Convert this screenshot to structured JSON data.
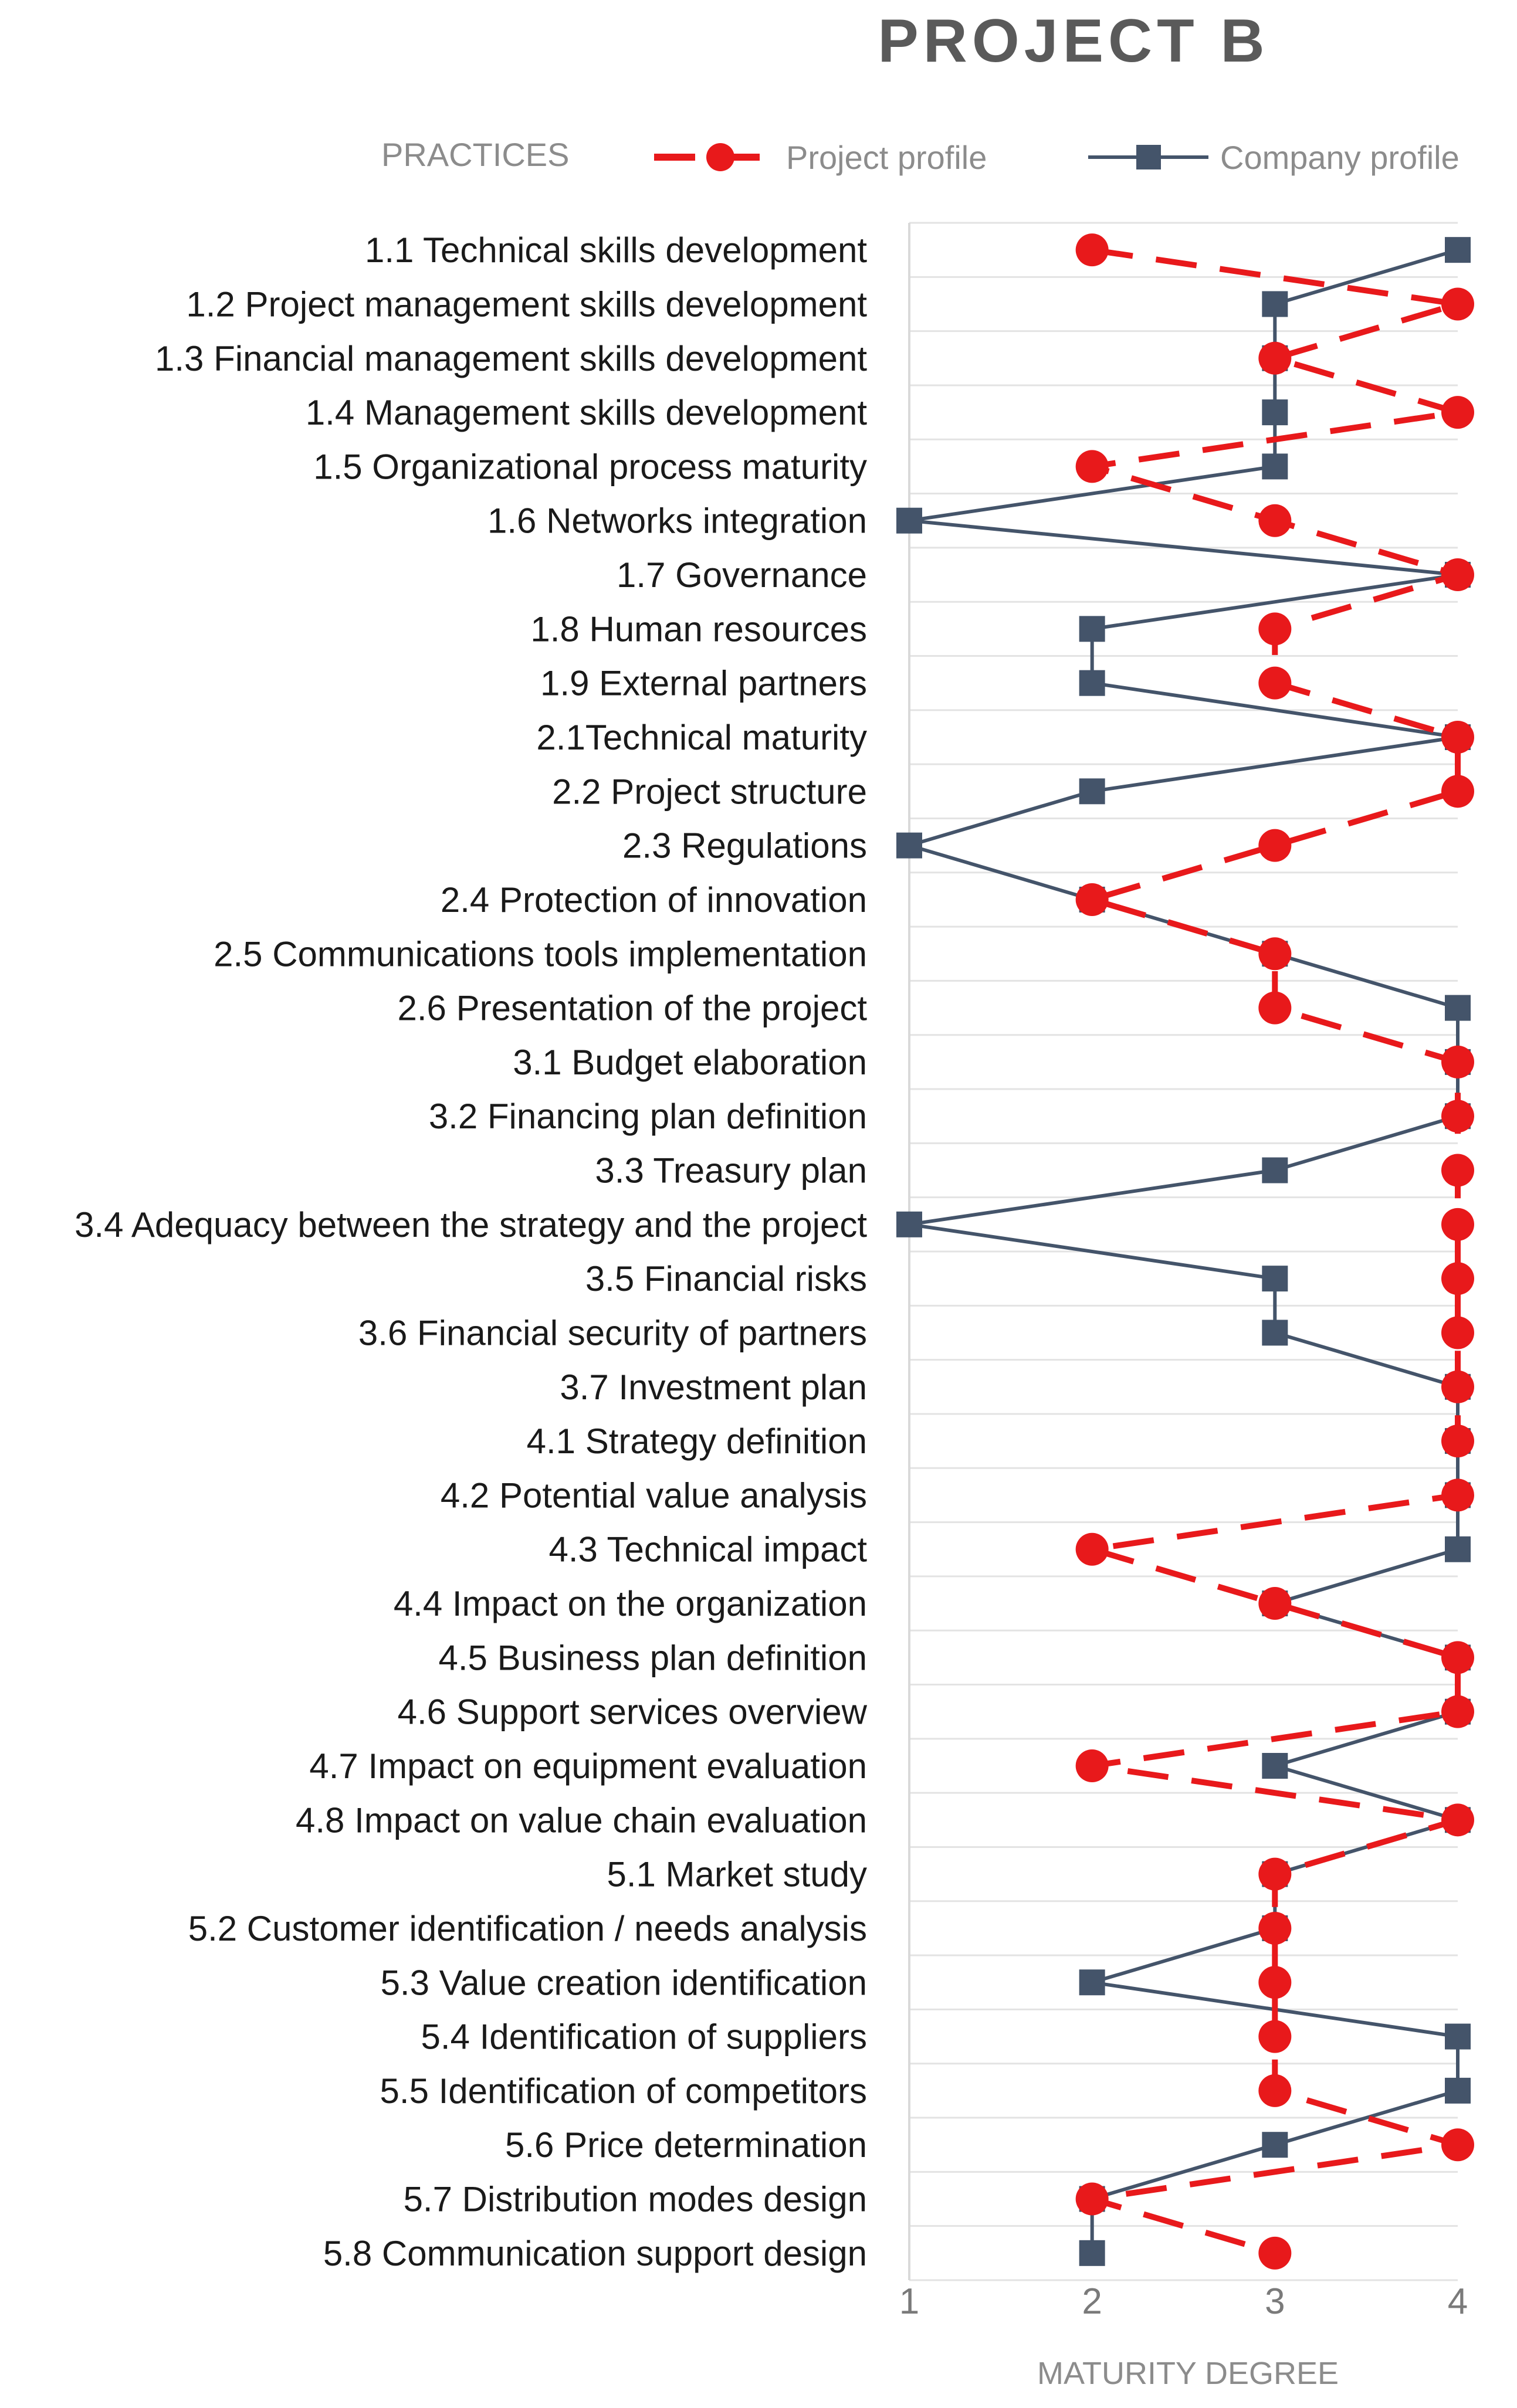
{
  "chart_data": {
    "type": "line",
    "title": "PROJECT B",
    "xlabel": "MATURITY DEGREE",
    "legend_heading": "PRACTICES",
    "legend_position": "top",
    "xlim": [
      1,
      4
    ],
    "x_ticks": [
      "1",
      "2",
      "3",
      "4"
    ],
    "grid": true,
    "orientation": "horizontal",
    "categories": [
      "1.1 Technical skills development",
      "1.2 Project management skills development",
      "1.3 Financial management skills development",
      "1.4 Management skills development",
      "1.5 Organizational process maturity",
      "1.6 Networks integration",
      "1.7 Governance",
      "1.8 Human resources",
      "1.9 External partners",
      "2.1Technical maturity",
      "2.2 Project structure",
      "2.3 Regulations",
      "2.4 Protection of innovation",
      "2.5 Communications tools implementation",
      "2.6 Presentation of the project",
      "3.1 Budget elaboration",
      "3.2 Financing plan definition",
      "3.3 Treasury plan",
      "3.4 Adequacy between the strategy and the project",
      "3.5 Financial risks",
      "3.6 Financial security of partners",
      "3.7 Investment plan",
      "4.1 Strategy definition",
      "4.2 Potential value analysis",
      "4.3 Technical impact",
      "4.4 Impact on the organization",
      "4.5 Business plan definition",
      "4.6 Support services overview",
      "4.7 Impact on equipment evaluation",
      "4.8 Impact on value chain evaluation",
      "5.1 Market study",
      "5.2 Customer identification / needs analysis",
      "5.3 Value creation identification",
      "5.4 Identification of suppliers",
      "5.5 Identification of competitors",
      "5.6 Price determination",
      "5.7 Distribution modes design",
      "5.8 Communication support design"
    ],
    "series": [
      {
        "name": "Project profile",
        "color": "#e8191b",
        "style": "dashed",
        "marker": "circle",
        "values": [
          2,
          4,
          3,
          4,
          2,
          3,
          4,
          3,
          3,
          4,
          4,
          3,
          2,
          3,
          3,
          4,
          4,
          4,
          4,
          4,
          4,
          4,
          4,
          4,
          2,
          3,
          4,
          4,
          2,
          4,
          3,
          3,
          3,
          3,
          3,
          4,
          2,
          3
        ]
      },
      {
        "name": "Company profile",
        "color": "#44546a",
        "style": "solid",
        "marker": "square",
        "values": [
          4,
          3,
          3,
          3,
          3,
          1,
          4,
          2,
          2,
          4,
          2,
          1,
          2,
          3,
          4,
          4,
          4,
          3,
          1,
          3,
          3,
          4,
          4,
          4,
          4,
          3,
          4,
          4,
          3,
          4,
          3,
          3,
          2,
          4,
          4,
          3,
          2,
          2
        ]
      }
    ]
  }
}
